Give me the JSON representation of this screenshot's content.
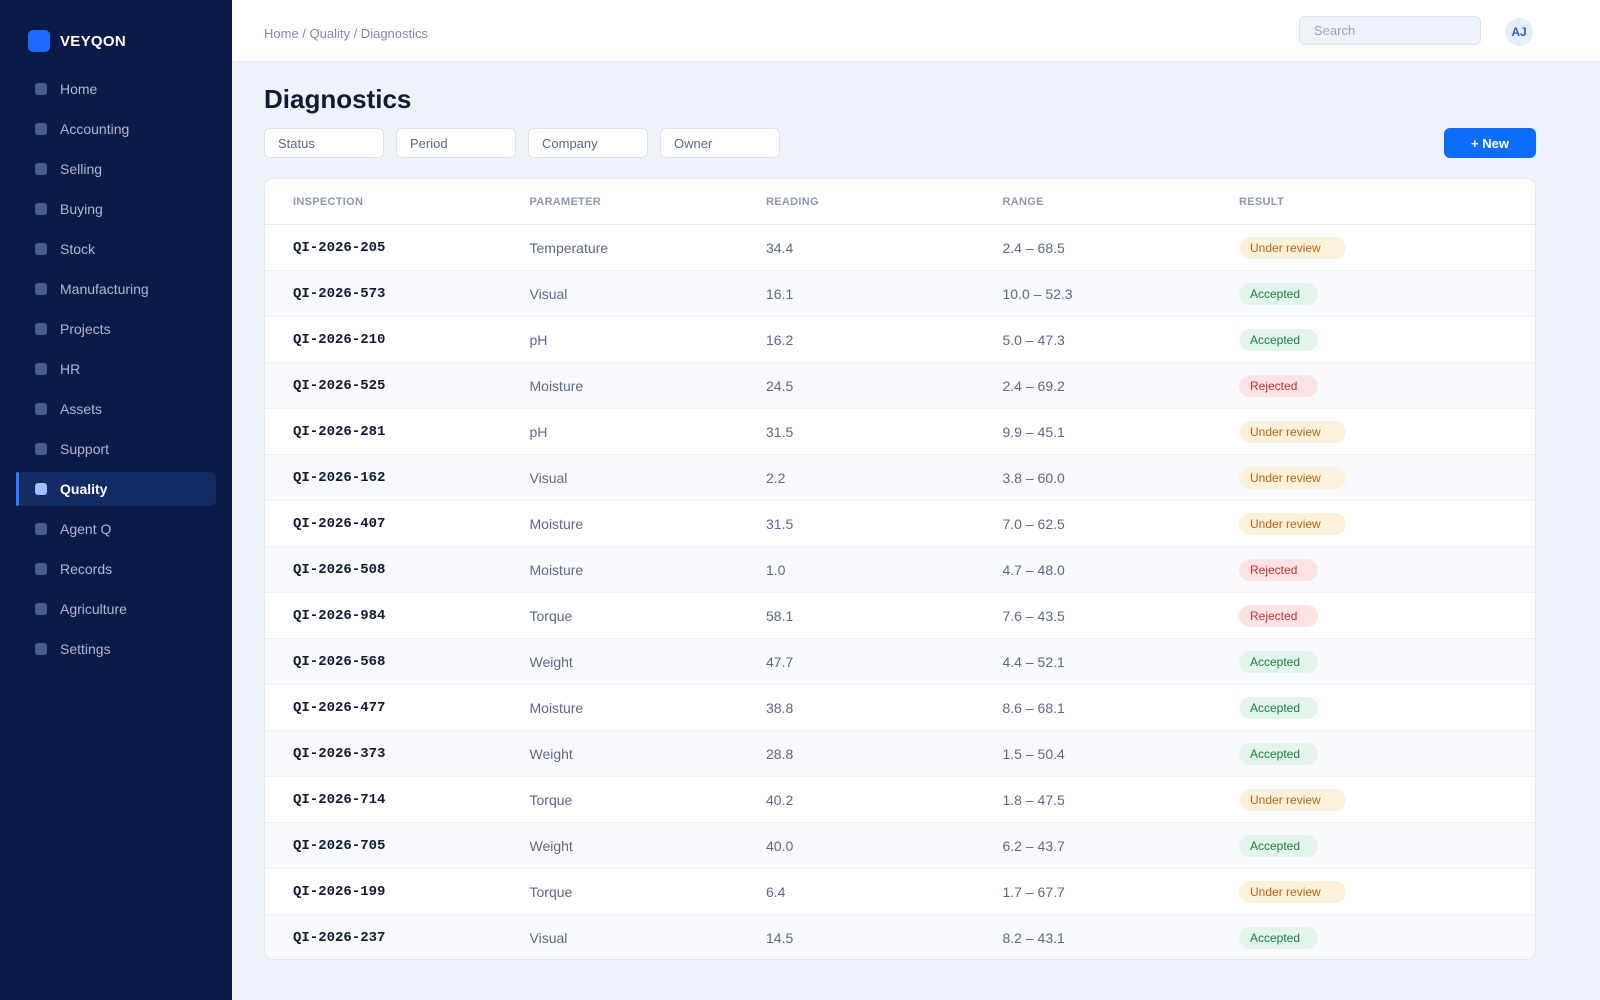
{
  "app": {
    "name": "VEYQON"
  },
  "sidebar": {
    "items": [
      {
        "label": "Home",
        "active": false
      },
      {
        "label": "Accounting",
        "active": false
      },
      {
        "label": "Selling",
        "active": false
      },
      {
        "label": "Buying",
        "active": false
      },
      {
        "label": "Stock",
        "active": false
      },
      {
        "label": "Manufacturing",
        "active": false
      },
      {
        "label": "Projects",
        "active": false
      },
      {
        "label": "HR",
        "active": false
      },
      {
        "label": "Assets",
        "active": false
      },
      {
        "label": "Support",
        "active": false
      },
      {
        "label": "Quality",
        "active": true
      },
      {
        "label": "Agent Q",
        "active": false
      },
      {
        "label": "Records",
        "active": false
      },
      {
        "label": "Agriculture",
        "active": false
      },
      {
        "label": "Settings",
        "active": false
      }
    ]
  },
  "topbar": {
    "breadcrumb": "Home / Quality / Diagnostics",
    "search": {
      "placeholder": "Search",
      "value": ""
    },
    "avatar_initials": "AJ"
  },
  "page": {
    "title": "Diagnostics"
  },
  "filters": [
    {
      "label": "Status"
    },
    {
      "label": "Period"
    },
    {
      "label": "Company"
    },
    {
      "label": "Owner"
    }
  ],
  "new_button": {
    "label": "+ New"
  },
  "colors": {
    "sidebar_bg": "#0b1b48",
    "accent": "#0d6efd",
    "under_review": "#b1650a",
    "accepted": "#1c7a43",
    "rejected": "#c2312f"
  },
  "table": {
    "columns": [
      "INSPECTION",
      "PARAMETER",
      "READING",
      "RANGE",
      "RESULT"
    ],
    "rows": [
      {
        "inspection": "QI-2026-205",
        "parameter": "Temperature",
        "reading": "34.4",
        "range": "2.4 – 68.5",
        "result": "Under review"
      },
      {
        "inspection": "QI-2026-573",
        "parameter": "Visual",
        "reading": "16.1",
        "range": "10.0 – 52.3",
        "result": "Accepted"
      },
      {
        "inspection": "QI-2026-210",
        "parameter": "pH",
        "reading": "16.2",
        "range": "5.0 – 47.3",
        "result": "Accepted"
      },
      {
        "inspection": "QI-2026-525",
        "parameter": "Moisture",
        "reading": "24.5",
        "range": "2.4 – 69.2",
        "result": "Rejected"
      },
      {
        "inspection": "QI-2026-281",
        "parameter": "pH",
        "reading": "31.5",
        "range": "9.9 – 45.1",
        "result": "Under review"
      },
      {
        "inspection": "QI-2026-162",
        "parameter": "Visual",
        "reading": "2.2",
        "range": "3.8 – 60.0",
        "result": "Under review"
      },
      {
        "inspection": "QI-2026-407",
        "parameter": "Moisture",
        "reading": "31.5",
        "range": "7.0 – 62.5",
        "result": "Under review"
      },
      {
        "inspection": "QI-2026-508",
        "parameter": "Moisture",
        "reading": "1.0",
        "range": "4.7 – 48.0",
        "result": "Rejected"
      },
      {
        "inspection": "QI-2026-984",
        "parameter": "Torque",
        "reading": "58.1",
        "range": "7.6 – 43.5",
        "result": "Rejected"
      },
      {
        "inspection": "QI-2026-568",
        "parameter": "Weight",
        "reading": "47.7",
        "range": "4.4 – 52.1",
        "result": "Accepted"
      },
      {
        "inspection": "QI-2026-477",
        "parameter": "Moisture",
        "reading": "38.8",
        "range": "8.6 – 68.1",
        "result": "Accepted"
      },
      {
        "inspection": "QI-2026-373",
        "parameter": "Weight",
        "reading": "28.8",
        "range": "1.5 – 50.4",
        "result": "Accepted"
      },
      {
        "inspection": "QI-2026-714",
        "parameter": "Torque",
        "reading": "40.2",
        "range": "1.8 – 47.5",
        "result": "Under review"
      },
      {
        "inspection": "QI-2026-705",
        "parameter": "Weight",
        "reading": "40.0",
        "range": "6.2 – 43.7",
        "result": "Accepted"
      },
      {
        "inspection": "QI-2026-199",
        "parameter": "Torque",
        "reading": "6.4",
        "range": "1.7 – 67.7",
        "result": "Under review"
      },
      {
        "inspection": "QI-2026-237",
        "parameter": "Visual",
        "reading": "14.5",
        "range": "8.2 – 43.1",
        "result": "Accepted"
      }
    ]
  }
}
